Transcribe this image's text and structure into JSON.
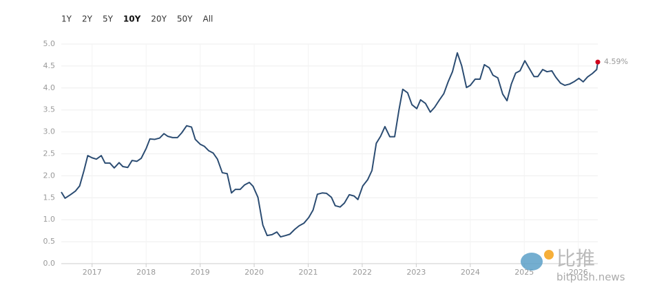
{
  "chart_data": {
    "type": "line",
    "range_buttons": [
      "1Y",
      "2Y",
      "5Y",
      "10Y",
      "20Y",
      "50Y",
      "All"
    ],
    "active_range_index": 3,
    "x": [
      2016.43,
      2016.5,
      2016.6,
      2016.69,
      2016.77,
      2016.85,
      2016.92,
      2017.0,
      2017.08,
      2017.17,
      2017.24,
      2017.33,
      2017.41,
      2017.5,
      2017.57,
      2017.66,
      2017.74,
      2017.83,
      2017.91,
      2018.0,
      2018.07,
      2018.16,
      2018.25,
      2018.33,
      2018.4,
      2018.49,
      2018.58,
      2018.66,
      2018.75,
      2018.84,
      2018.91,
      2019.0,
      2019.08,
      2019.16,
      2019.24,
      2019.32,
      2019.41,
      2019.5,
      2019.58,
      2019.65,
      2019.74,
      2019.82,
      2019.91,
      2019.98,
      2020.07,
      2020.16,
      2020.24,
      2020.33,
      2020.42,
      2020.49,
      2020.58,
      2020.66,
      2020.75,
      2020.83,
      2020.92,
      2021.01,
      2021.09,
      2021.17,
      2021.26,
      2021.34,
      2021.43,
      2021.5,
      2021.59,
      2021.67,
      2021.76,
      2021.85,
      2021.92,
      2022.01,
      2022.1,
      2022.18,
      2022.26,
      2022.34,
      2022.42,
      2022.51,
      2022.6,
      2022.68,
      2022.75,
      2022.84,
      2022.92,
      2023.01,
      2023.08,
      2023.17,
      2023.26,
      2023.34,
      2023.43,
      2023.51,
      2023.59,
      2023.67,
      2023.76,
      2023.84,
      2023.93,
      2024.0,
      2024.09,
      2024.18,
      2024.26,
      2024.35,
      2024.42,
      2024.51,
      2024.6,
      2024.68,
      2024.76,
      2024.84,
      2024.92,
      2025.01,
      2025.09,
      2025.18,
      2025.25,
      2025.34,
      2025.42,
      2025.51,
      2025.58,
      2025.67,
      2025.75,
      2025.84,
      2025.93,
      2026.01,
      2026.09,
      2026.17,
      2026.26,
      2026.34,
      2026.36
    ],
    "series": [
      {
        "color": "#2b4c72",
        "values": [
          1.63,
          1.49,
          1.57,
          1.65,
          1.77,
          2.12,
          2.46,
          2.41,
          2.38,
          2.46,
          2.29,
          2.29,
          2.18,
          2.3,
          2.21,
          2.19,
          2.35,
          2.33,
          2.4,
          2.62,
          2.84,
          2.83,
          2.86,
          2.96,
          2.9,
          2.87,
          2.87,
          2.98,
          3.14,
          3.11,
          2.83,
          2.72,
          2.67,
          2.57,
          2.52,
          2.38,
          2.07,
          2.05,
          1.61,
          1.69,
          1.69,
          1.79,
          1.85,
          1.76,
          1.51,
          0.88,
          0.64,
          0.66,
          0.72,
          0.61,
          0.64,
          0.67,
          0.78,
          0.86,
          0.92,
          1.05,
          1.22,
          1.58,
          1.61,
          1.6,
          1.51,
          1.32,
          1.29,
          1.38,
          1.57,
          1.54,
          1.46,
          1.77,
          1.91,
          2.12,
          2.74,
          2.9,
          3.12,
          2.89,
          2.89,
          3.5,
          3.97,
          3.89,
          3.62,
          3.53,
          3.73,
          3.65,
          3.45,
          3.56,
          3.73,
          3.87,
          4.14,
          4.37,
          4.8,
          4.51,
          4.01,
          4.06,
          4.2,
          4.2,
          4.53,
          4.46,
          4.29,
          4.23,
          3.86,
          3.71,
          4.09,
          4.34,
          4.39,
          4.62,
          4.45,
          4.26,
          4.26,
          4.42,
          4.37,
          4.39,
          4.25,
          4.11,
          4.06,
          4.09,
          4.15,
          4.22,
          4.14,
          4.25,
          4.33,
          4.42,
          4.59
        ]
      }
    ],
    "annotations": [
      {
        "x": 2026.36,
        "y": 4.59,
        "text": "4.59%",
        "color": "#d0021b"
      }
    ],
    "xlim": [
      2016.43,
      2026.36
    ],
    "xticks": [
      2017,
      2018,
      2019,
      2020,
      2021,
      2022,
      2023,
      2024,
      2025,
      2026
    ],
    "ylim": [
      0,
      5
    ],
    "yticks": [
      {
        "value": 0,
        "label": "0.0"
      },
      0.5,
      {
        "value": 1,
        "label": "1.0"
      },
      1.5,
      {
        "value": 2,
        "label": "2.0"
      },
      2.5,
      {
        "value": 3,
        "label": "3.0"
      },
      3.5,
      {
        "value": 4,
        "label": "4.0"
      },
      4.5,
      {
        "value": 5,
        "label": "5.0"
      }
    ],
    "grid": true,
    "watermark": {
      "logo": "比推",
      "site": "bitpush.news"
    }
  }
}
